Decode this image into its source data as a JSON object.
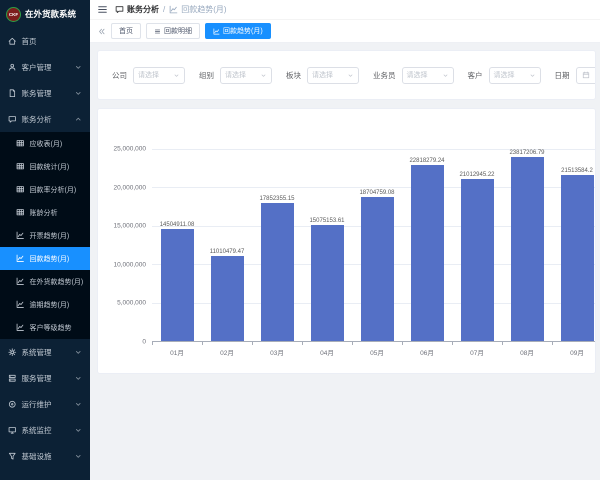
{
  "app": {
    "logo_text": "CKF",
    "title": "在外货款系统"
  },
  "colors": {
    "accent": "#1890ff",
    "bar": "#5470c6",
    "sidebar_bg": "#0c2135",
    "submenu_bg": "#000c17",
    "content_bg": "#f0f2f5"
  },
  "sidebar": {
    "menu_top": [
      {
        "label": "首页",
        "icon": "home-icon"
      },
      {
        "label": "客户管理",
        "icon": "user-icon",
        "chevron": "down"
      },
      {
        "label": "账务管理",
        "icon": "file-icon",
        "chevron": "down"
      },
      {
        "label": "账务分析",
        "icon": "chat-icon",
        "chevron": "up"
      }
    ],
    "submenu": [
      {
        "label": "应收表(月)",
        "icon": "table-icon"
      },
      {
        "label": "回款统计(月)",
        "icon": "table-icon"
      },
      {
        "label": "回款率分析(月)",
        "icon": "table-icon"
      },
      {
        "label": "账龄分析",
        "icon": "table-icon"
      },
      {
        "label": "开票趋势(月)",
        "icon": "line-chart-icon"
      },
      {
        "label": "回款趋势(月)",
        "icon": "line-chart-icon",
        "active": true
      },
      {
        "label": "在外货款趋势(月)",
        "icon": "line-chart-icon"
      },
      {
        "label": "逾期趋势(月)",
        "icon": "line-chart-icon"
      },
      {
        "label": "客户等级趋势",
        "icon": "line-chart-icon"
      }
    ],
    "menu_bottom": [
      {
        "label": "系统管理",
        "icon": "gear-icon",
        "chevron": "down"
      },
      {
        "label": "服务管理",
        "icon": "server-icon",
        "chevron": "down"
      },
      {
        "label": "运行维护",
        "icon": "run-icon",
        "chevron": "down"
      },
      {
        "label": "系统监控",
        "icon": "monitor-icon",
        "chevron": "down"
      },
      {
        "label": "基础设施",
        "icon": "funnel-icon",
        "chevron": "down"
      }
    ]
  },
  "topbar": {
    "menu_icon": "hamburger-icon",
    "separator": "/",
    "breadcrumb": [
      {
        "label": "账务分析",
        "icon": "chat-icon"
      },
      {
        "label": "回款趋势(月)",
        "icon": "line-chart-icon"
      }
    ]
  },
  "tab_bar": {
    "prev_icon": "double-left-icon",
    "tabs": [
      {
        "label": "首页"
      },
      {
        "label": "回款明细",
        "icon": "list-icon"
      },
      {
        "label": "回款趋势(月)",
        "icon": "line-chart-icon",
        "active": true
      }
    ]
  },
  "filters": {
    "selects": [
      {
        "label": "公司",
        "placeholder": "请选择"
      },
      {
        "label": "组别",
        "placeholder": "请选择"
      },
      {
        "label": "板块",
        "placeholder": "请选择"
      },
      {
        "label": "业务员",
        "placeholder": "请选择"
      },
      {
        "label": "客户",
        "placeholder": "请选择"
      }
    ],
    "date": {
      "label": "日期",
      "icon": "calendar-icon",
      "separator": "-"
    }
  },
  "chart_data": {
    "type": "bar",
    "title": "",
    "xlabel": "",
    "ylabel": "",
    "categories": [
      "01月",
      "02月",
      "03月",
      "04月",
      "05月",
      "06月",
      "07月",
      "08月",
      "09月"
    ],
    "values": [
      14504911.08,
      11010479.47,
      17852355.15,
      15075153.61,
      18704759.08,
      22818279.24,
      21012945.22,
      23817206.79,
      21513584.2
    ],
    "value_labels": [
      "14504911.08",
      "11010479.47",
      "17852355.15",
      "15075153.61",
      "18704759.08",
      "22818279.24",
      "21012945.22",
      "23817206.79",
      "21513584.2"
    ],
    "y_ticks": [
      "25,000,000",
      "20,000,000",
      "15,000,000",
      "10,000,000",
      "5,000,000",
      "0"
    ],
    "ylim": [
      0,
      25000000
    ],
    "grid": true,
    "legend": "none",
    "bar_color": "#5470c6"
  }
}
